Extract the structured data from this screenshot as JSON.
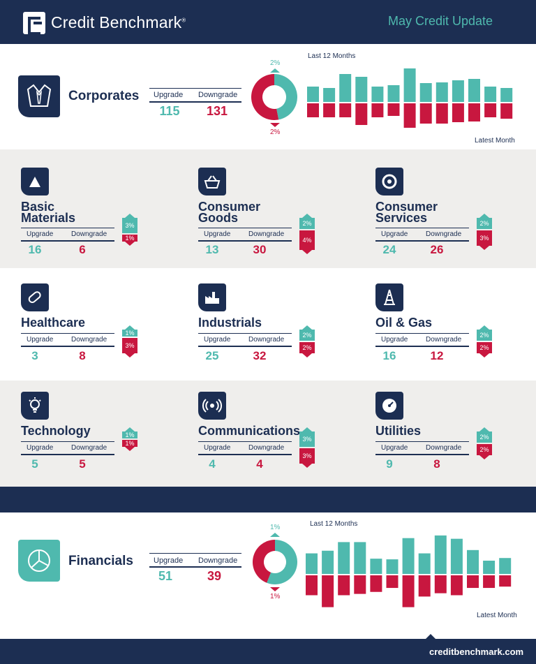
{
  "header": {
    "brand": "Credit Benchmark",
    "brand_mark": "®",
    "update": "May Credit Update"
  },
  "labels": {
    "upgrade": "Upgrade",
    "downgrade": "Downgrade",
    "last12": "Last 12 Months",
    "latest": "Latest Month"
  },
  "colors": {
    "navy": "#1c2e52",
    "teal": "#4fb9ae",
    "red": "#c8173f",
    "gray": "#efeeec"
  },
  "chart_data": [
    {
      "type": "bar",
      "name": "Corporates",
      "title": "",
      "upgrade": "115",
      "downgrade": "131",
      "donut_up_pct": "2%",
      "donut_dn_pct": "2%",
      "donut_up_share": 0.47,
      "monthly_up": [
        22,
        20,
        40,
        36,
        22,
        24,
        48,
        27,
        28,
        31,
        33,
        22,
        20
      ],
      "monthly_down": [
        20,
        20,
        20,
        31,
        20,
        18,
        35,
        29,
        29,
        27,
        26,
        20,
        22
      ],
      "ylim": [
        -50,
        50
      ]
    },
    {
      "type": "bar",
      "name": "Financials",
      "title": "",
      "upgrade": "51",
      "downgrade": "39",
      "donut_up_pct": "1%",
      "donut_dn_pct": "1%",
      "donut_up_share": 0.56,
      "monthly_up": [
        31,
        35,
        48,
        48,
        23,
        22,
        54,
        31,
        58,
        53,
        36,
        20,
        24
      ],
      "monthly_down": [
        30,
        48,
        30,
        28,
        25,
        19,
        48,
        32,
        27,
        30,
        19,
        19,
        17
      ],
      "ylim": [
        -60,
        60
      ]
    },
    {
      "type": "table",
      "sectors": [
        {
          "name_l1": "Basic",
          "name_l2": "Materials",
          "icon": "triangle-icon",
          "upgrade": "16",
          "downgrade": "6",
          "up_pct": "3%",
          "dn_pct": "1%"
        },
        {
          "name_l1": "Consumer",
          "name_l2": "Goods",
          "icon": "basket-icon",
          "upgrade": "13",
          "downgrade": "30",
          "up_pct": "2%",
          "dn_pct": "4%"
        },
        {
          "name_l1": "Consumer",
          "name_l2": "Services",
          "icon": "service-ring-icon",
          "upgrade": "24",
          "downgrade": "26",
          "up_pct": "2%",
          "dn_pct": "3%"
        },
        {
          "name_l1": "Healthcare",
          "name_l2": "",
          "icon": "pill-icon",
          "upgrade": "3",
          "downgrade": "8",
          "up_pct": "1%",
          "dn_pct": "3%"
        },
        {
          "name_l1": "Industrials",
          "name_l2": "",
          "icon": "factory-icon",
          "upgrade": "25",
          "downgrade": "32",
          "up_pct": "2%",
          "dn_pct": "2%"
        },
        {
          "name_l1": "Oil & Gas",
          "name_l2": "",
          "icon": "oil-rig-icon",
          "upgrade": "16",
          "downgrade": "12",
          "up_pct": "2%",
          "dn_pct": "2%"
        },
        {
          "name_l1": "Technology",
          "name_l2": "",
          "icon": "lightbulb-icon",
          "upgrade": "5",
          "downgrade": "5",
          "up_pct": "1%",
          "dn_pct": "1%"
        },
        {
          "name_l1": "Communications",
          "name_l2": "",
          "icon": "signal-icon",
          "upgrade": "4",
          "downgrade": "4",
          "up_pct": "3%",
          "dn_pct": "3%"
        },
        {
          "name_l1": "Utilities",
          "name_l2": "",
          "icon": "gauge-icon",
          "upgrade": "9",
          "downgrade": "8",
          "up_pct": "2%",
          "dn_pct": "2%"
        }
      ]
    }
  ],
  "footer": {
    "site": "creditbenchmark.com"
  }
}
